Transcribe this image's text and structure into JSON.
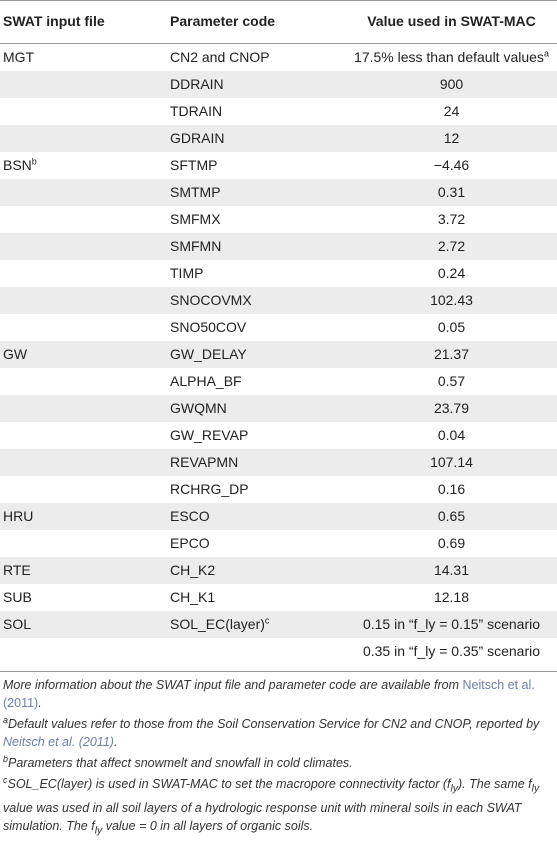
{
  "header": {
    "col1": "SWAT input file",
    "col2": "Parameter code",
    "col3": "Value used in SWAT-MAC"
  },
  "rows": [
    {
      "file": "MGT",
      "file_sup": "",
      "code": "CN2 and CNOP",
      "code_sup": "",
      "value": "17.5% less than default values",
      "value_sup": "a"
    },
    {
      "file": "",
      "file_sup": "",
      "code": "DDRAIN",
      "code_sup": "",
      "value": "900",
      "value_sup": ""
    },
    {
      "file": "",
      "file_sup": "",
      "code": "TDRAIN",
      "code_sup": "",
      "value": "24",
      "value_sup": ""
    },
    {
      "file": "",
      "file_sup": "",
      "code": "GDRAIN",
      "code_sup": "",
      "value": "12",
      "value_sup": ""
    },
    {
      "file": "BSN",
      "file_sup": "b",
      "code": "SFTMP",
      "code_sup": "",
      "value": "−4.46",
      "value_sup": ""
    },
    {
      "file": "",
      "file_sup": "",
      "code": "SMTMP",
      "code_sup": "",
      "value": "0.31",
      "value_sup": ""
    },
    {
      "file": "",
      "file_sup": "",
      "code": "SMFMX",
      "code_sup": "",
      "value": "3.72",
      "value_sup": ""
    },
    {
      "file": "",
      "file_sup": "",
      "code": "SMFMN",
      "code_sup": "",
      "value": "2.72",
      "value_sup": ""
    },
    {
      "file": "",
      "file_sup": "",
      "code": "TIMP",
      "code_sup": "",
      "value": "0.24",
      "value_sup": ""
    },
    {
      "file": "",
      "file_sup": "",
      "code": "SNOCOVMX",
      "code_sup": "",
      "value": "102.43",
      "value_sup": ""
    },
    {
      "file": "",
      "file_sup": "",
      "code": "SNO50COV",
      "code_sup": "",
      "value": "0.05",
      "value_sup": ""
    },
    {
      "file": "GW",
      "file_sup": "",
      "code": "GW_DELAY",
      "code_sup": "",
      "value": "21.37",
      "value_sup": ""
    },
    {
      "file": "",
      "file_sup": "",
      "code": "ALPHA_BF",
      "code_sup": "",
      "value": "0.57",
      "value_sup": ""
    },
    {
      "file": "",
      "file_sup": "",
      "code": "GWQMN",
      "code_sup": "",
      "value": "23.79",
      "value_sup": ""
    },
    {
      "file": "",
      "file_sup": "",
      "code": "GW_REVAP",
      "code_sup": "",
      "value": "0.04",
      "value_sup": ""
    },
    {
      "file": "",
      "file_sup": "",
      "code": "REVAPMN",
      "code_sup": "",
      "value": "107.14",
      "value_sup": ""
    },
    {
      "file": "",
      "file_sup": "",
      "code": "RCHRG_DP",
      "code_sup": "",
      "value": "0.16",
      "value_sup": ""
    },
    {
      "file": "HRU",
      "file_sup": "",
      "code": "ESCO",
      "code_sup": "",
      "value": "0.65",
      "value_sup": ""
    },
    {
      "file": "",
      "file_sup": "",
      "code": "EPCO",
      "code_sup": "",
      "value": "0.69",
      "value_sup": ""
    },
    {
      "file": "RTE",
      "file_sup": "",
      "code": "CH_K2",
      "code_sup": "",
      "value": "14.31",
      "value_sup": ""
    },
    {
      "file": "SUB",
      "file_sup": "",
      "code": "CH_K1",
      "code_sup": "",
      "value": "12.18",
      "value_sup": ""
    },
    {
      "file": "SOL",
      "file_sup": "",
      "code": "SOL_EC(layer)",
      "code_sup": "c",
      "value": "0.15 in “f_ly = 0.15” scenario",
      "value_sup": ""
    },
    {
      "file": "",
      "file_sup": "",
      "code": "",
      "code_sup": "",
      "value": "0.35 in “f_ly = 0.35” scenario",
      "value_sup": ""
    }
  ],
  "notes": {
    "n1_text": "More information about the SWAT input file and parameter code are available from ",
    "n1_ref": "Neitsch et al. (2011)",
    "n1_end": ".",
    "n2_sup": "a",
    "n2_text": "Default values refer to those from the Soil Conservation Service for CN2 and CNOP, reported by ",
    "n2_ref": "Neitsch et al. (2011)",
    "n2_end": ".",
    "n3_sup": "b",
    "n3_text": "Parameters that affect snowmelt and snowfall in cold climates.",
    "n4_sup": "c",
    "n4_a": "SOL_EC(layer) is used in SWAT-MAC to set the macropore connectivity factor (f",
    "n4_sub1": "ly",
    "n4_b": "). The same f",
    "n4_sub2": "ly",
    "n4_c": " value was used in all soil layers of a hydrologic response unit with mineral soils in each SWAT simulation. The f",
    "n4_sub3": "ly",
    "n4_d": " value = 0 in all layers of organic soils."
  }
}
